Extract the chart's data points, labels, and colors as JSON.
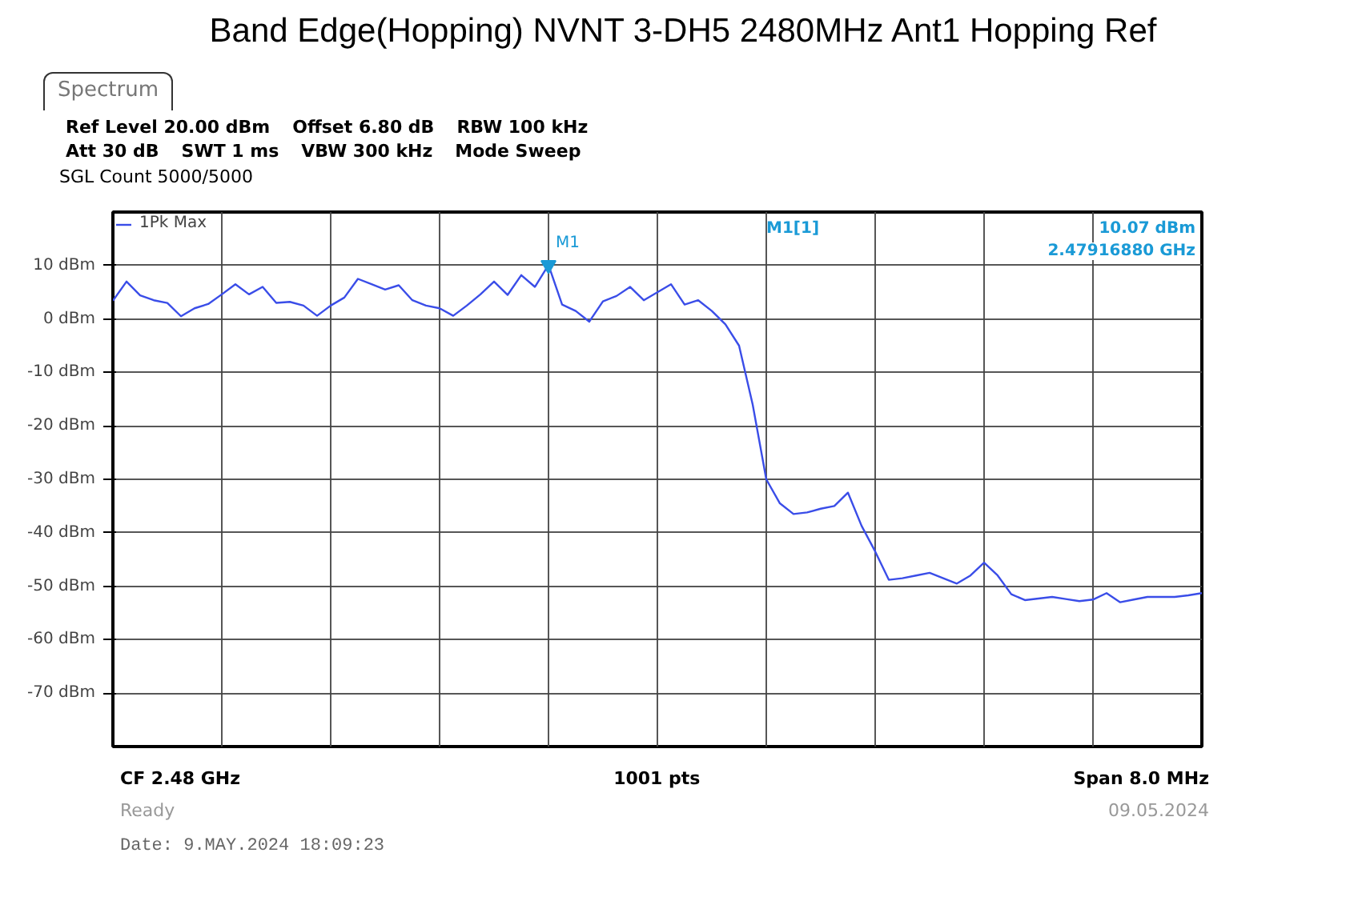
{
  "chart_data": {
    "type": "line",
    "title": "Band Edge(Hopping) NVNT 3-DH5 2480MHz Ant1 Hopping Ref",
    "categories": [
      null,
      null,
      null,
      null,
      null,
      null,
      null,
      null,
      null,
      null,
      null,
      null,
      null,
      null,
      null,
      null,
      null,
      null,
      null,
      null,
      null,
      null,
      null,
      null,
      null,
      null,
      null,
      null,
      null,
      null,
      null,
      null,
      null,
      null,
      null,
      null,
      null,
      null,
      null,
      null,
      null,
      null,
      null,
      null,
      null,
      null,
      null,
      null,
      null,
      null,
      null,
      null,
      null,
      null,
      null,
      null,
      null,
      null,
      null,
      null,
      null,
      null,
      null,
      null,
      null,
      null,
      null,
      null,
      null,
      null,
      null,
      null,
      null,
      null,
      null,
      null,
      null,
      null,
      null,
      null,
      null
    ],
    "series": [
      {
        "name": "1Pk Max",
        "color": "#3a4de8",
        "values": [
          3.4,
          7.0,
          4.4,
          3.5,
          3.0,
          0.5,
          2.0,
          2.8,
          4.6,
          6.5,
          4.6,
          6.0,
          3.0,
          3.2,
          2.5,
          0.6,
          2.5,
          4.0,
          7.5,
          6.5,
          5.5,
          6.3,
          3.5,
          2.5,
          2.0,
          0.6,
          2.5,
          4.6,
          7.0,
          4.5,
          8.2,
          6.0,
          10.1,
          2.7,
          1.5,
          -0.5,
          3.3,
          4.3,
          6.0,
          3.5,
          5.0,
          6.5,
          2.7,
          3.5,
          1.5,
          -1.0,
          -5.0,
          -16.0,
          -30.0,
          -34.5,
          -36.5,
          -36.2,
          -35.5,
          -35.0,
          -32.5,
          -38.7,
          -43.5,
          -48.8,
          -48.5,
          -48.0,
          -47.5,
          -48.5,
          -49.5,
          -48.0,
          -45.6,
          -48.0,
          -51.5,
          -52.6,
          -52.3,
          -52.0,
          -52.4,
          -52.8,
          -52.5,
          -51.3,
          -53.0,
          -52.5,
          -52.0,
          -52.0,
          -52.0,
          -51.7,
          -51.3
        ]
      }
    ],
    "ylim": [
      -80,
      20
    ],
    "yticks": [
      {
        "value": 10,
        "label": "10 dBm"
      },
      {
        "value": 0,
        "label": "0 dBm"
      },
      {
        "value": -10,
        "label": "-10 dBm"
      },
      {
        "value": -20,
        "label": "-20 dBm"
      },
      {
        "value": -30,
        "label": "-30 dBm"
      },
      {
        "value": -40,
        "label": "-40 dBm"
      },
      {
        "value": -50,
        "label": "-50 dBm"
      },
      {
        "value": -60,
        "label": "-60 dBm"
      },
      {
        "value": -70,
        "label": "-70 dBm"
      }
    ],
    "tick_labels": "y",
    "grid": true,
    "legend": "top left",
    "marker": "none",
    "line_style": "solid",
    "annotations": [
      "Spectrum",
      "Ref Level 20.00 dBm",
      "Offset 6.80 dB",
      "RBW 100 kHz",
      "Att 30 dB",
      "SWT 1 ms",
      "VBW 300 kHz",
      "Mode Sweep",
      "SGL Count 5000/5000",
      "M1",
      "M1[1]",
      "10.07 dBm",
      "2.47916880 GHz",
      "CF 2.48 GHz",
      "1001 pts",
      "Span 8.0 MHz",
      "Ready",
      "09.05.2024",
      "Date: 9.MAY.2024 18:09:23"
    ]
  }
}
